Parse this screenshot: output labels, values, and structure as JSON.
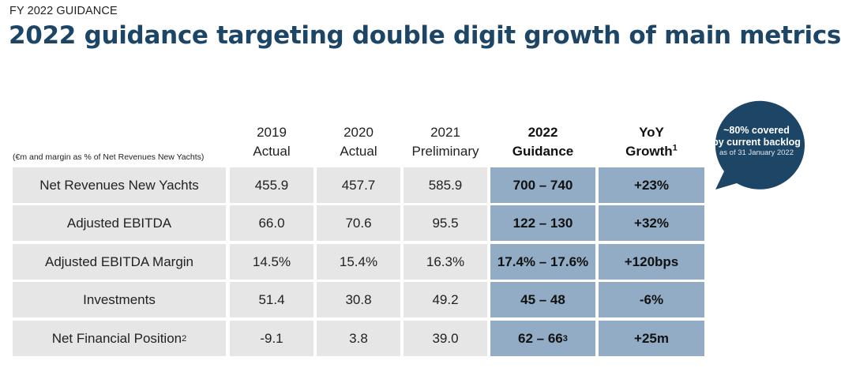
{
  "header": {
    "kicker": "FY 2022 GUIDANCE",
    "title": "2022 guidance targeting double digit growth of main metrics"
  },
  "table": {
    "units_note": "(€m and margin as % of Net Revenues New Yachts)",
    "columns": [
      {
        "line1": "2019",
        "line2": "Actual",
        "sup": ""
      },
      {
        "line1": "2020",
        "line2": "Actual",
        "sup": ""
      },
      {
        "line1": "2021",
        "line2": "Preliminary",
        "sup": ""
      },
      {
        "line1": "2022",
        "line2": "Guidance",
        "sup": ""
      },
      {
        "line1": "YoY",
        "line2": "Growth",
        "sup": "1"
      }
    ],
    "rows": [
      {
        "label": "Net Revenues New Yachts",
        "label_sup": "",
        "y2019": "455.9",
        "y2020": "457.7",
        "y2021": "585.9",
        "guidance": "700 – 740",
        "guidance_sup": "",
        "yoy": "+23%"
      },
      {
        "label": "Adjusted EBITDA",
        "label_sup": "",
        "y2019": "66.0",
        "y2020": "70.6",
        "y2021": "95.5",
        "guidance": "122 – 130",
        "guidance_sup": "",
        "yoy": "+32%"
      },
      {
        "label": "Adjusted EBITDA Margin",
        "label_sup": "",
        "y2019": "14.5%",
        "y2020": "15.4%",
        "y2021": "16.3%",
        "guidance": "17.4% – 17.6%",
        "guidance_sup": "",
        "yoy": "+120bps"
      },
      {
        "label": "Investments",
        "label_sup": "",
        "y2019": "51.4",
        "y2020": "30.8",
        "y2021": "49.2",
        "guidance": "45 – 48",
        "guidance_sup": "",
        "yoy": "-6%"
      },
      {
        "label": "Net Financial Position",
        "label_sup": "2",
        "y2019": "-9.1",
        "y2020": "3.8",
        "y2021": "39.0",
        "guidance": "62 – 66",
        "guidance_sup": "3",
        "yoy": "+25m"
      }
    ]
  },
  "callout": {
    "line1": "~80% covered",
    "line2": "by current backlog",
    "line3": "as of 31 January 2022",
    "color": "#1c4566"
  },
  "colors": {
    "title": "#1c4566",
    "grey_cell": "#e6e6e6",
    "blue_cell": "#91acc4"
  }
}
